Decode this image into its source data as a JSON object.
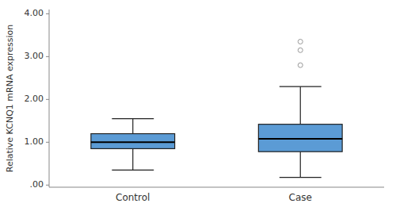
{
  "chart_data": {
    "type": "box",
    "categories": [
      "Control",
      "Case"
    ],
    "boxes": [
      {
        "whislo": 0.35,
        "q1": 0.85,
        "med": 1.0,
        "q3": 1.2,
        "whishi": 1.55,
        "fliers": []
      },
      {
        "whislo": 0.18,
        "q1": 0.78,
        "med": 1.08,
        "q3": 1.42,
        "whishi": 2.3,
        "fliers": [
          2.8,
          3.15,
          3.35
        ]
      }
    ],
    "color": "#5b9bd5",
    "y_label": "Relative KCNQ1 mRNA expression",
    "ylim": [
      -0.05,
      4.1
    ],
    "yticks": [
      {
        "value": 0.0,
        "label": ".00"
      },
      {
        "value": 1.0,
        "label": "1.00"
      },
      {
        "value": 2.0,
        "label": "2.00"
      },
      {
        "value": 3.0,
        "label": "3.00"
      },
      {
        "value": 4.0,
        "label": "4.00"
      }
    ],
    "grid": false
  }
}
